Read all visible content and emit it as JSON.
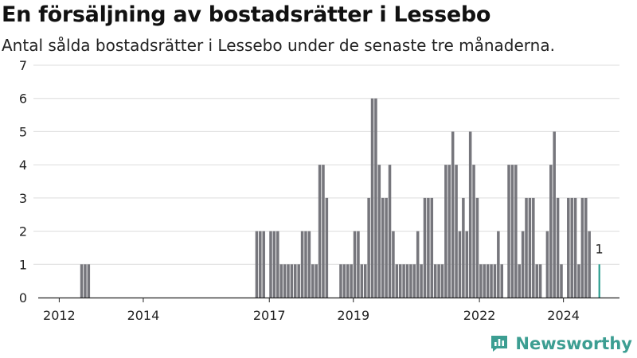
{
  "title": "En försäljning av bostadsrätter i Lessebo",
  "subtitle": "Antal sålda bostadsrätter i Lessebo under de senaste tre månaderna.",
  "brand": "Newsworthy",
  "colors": {
    "bar": "#76767c",
    "highlight": "#2a9d8f",
    "brand": "#3c9e92",
    "grid": "#dcdcdc"
  },
  "chart_data": {
    "type": "bar",
    "title": "En försäljning av bostadsrätter i Lessebo",
    "subtitle": "Antal sålda bostadsrätter i Lessebo under de senaste tre månaderna.",
    "xlabel": "",
    "ylabel": "",
    "ylim": [
      0,
      7
    ],
    "yticks": [
      "0",
      "1",
      "2",
      "3",
      "4",
      "5",
      "6",
      "7"
    ],
    "xticks": [
      {
        "label": "2012",
        "date": "2012-01"
      },
      {
        "label": "2014",
        "date": "2014-01"
      },
      {
        "label": "2017",
        "date": "2017-01"
      },
      {
        "label": "2019",
        "date": "2019-01"
      },
      {
        "label": "2022",
        "date": "2022-01"
      },
      {
        "label": "2024",
        "date": "2024-01"
      }
    ],
    "grid": true,
    "x_start": "2011-07",
    "x_end": "2025-05",
    "series": [
      {
        "values": [
          [
            "2012-07",
            1
          ],
          [
            "2012-08",
            1
          ],
          [
            "2012-09",
            1
          ],
          [
            "2016-09",
            2
          ],
          [
            "2016-10",
            2
          ],
          [
            "2016-11",
            2
          ],
          [
            "2017-01",
            2
          ],
          [
            "2017-02",
            2
          ],
          [
            "2017-03",
            2
          ],
          [
            "2017-04",
            1
          ],
          [
            "2017-05",
            1
          ],
          [
            "2017-06",
            1
          ],
          [
            "2017-07",
            1
          ],
          [
            "2017-08",
            1
          ],
          [
            "2017-09",
            1
          ],
          [
            "2017-10",
            2
          ],
          [
            "2017-11",
            2
          ],
          [
            "2017-12",
            2
          ],
          [
            "2018-01",
            1
          ],
          [
            "2018-02",
            1
          ],
          [
            "2018-03",
            4
          ],
          [
            "2018-04",
            4
          ],
          [
            "2018-05",
            3
          ],
          [
            "2018-09",
            1
          ],
          [
            "2018-10",
            1
          ],
          [
            "2018-11",
            1
          ],
          [
            "2018-12",
            1
          ],
          [
            "2019-01",
            2
          ],
          [
            "2019-02",
            2
          ],
          [
            "2019-03",
            1
          ],
          [
            "2019-04",
            1
          ],
          [
            "2019-05",
            3
          ],
          [
            "2019-06",
            6
          ],
          [
            "2019-07",
            6
          ],
          [
            "2019-08",
            4
          ],
          [
            "2019-09",
            3
          ],
          [
            "2019-10",
            3
          ],
          [
            "2019-11",
            4
          ],
          [
            "2019-12",
            2
          ],
          [
            "2020-01",
            1
          ],
          [
            "2020-02",
            1
          ],
          [
            "2020-03",
            1
          ],
          [
            "2020-04",
            1
          ],
          [
            "2020-05",
            1
          ],
          [
            "2020-06",
            1
          ],
          [
            "2020-07",
            2
          ],
          [
            "2020-08",
            1
          ],
          [
            "2020-09",
            3
          ],
          [
            "2020-10",
            3
          ],
          [
            "2020-11",
            3
          ],
          [
            "2020-12",
            1
          ],
          [
            "2021-01",
            1
          ],
          [
            "2021-02",
            1
          ],
          [
            "2021-03",
            4
          ],
          [
            "2021-04",
            4
          ],
          [
            "2021-05",
            5
          ],
          [
            "2021-06",
            4
          ],
          [
            "2021-07",
            2
          ],
          [
            "2021-08",
            3
          ],
          [
            "2021-09",
            2
          ],
          [
            "2021-10",
            5
          ],
          [
            "2021-11",
            4
          ],
          [
            "2021-12",
            3
          ],
          [
            "2022-01",
            1
          ],
          [
            "2022-02",
            1
          ],
          [
            "2022-03",
            1
          ],
          [
            "2022-04",
            1
          ],
          [
            "2022-05",
            1
          ],
          [
            "2022-06",
            2
          ],
          [
            "2022-07",
            1
          ],
          [
            "2022-09",
            4
          ],
          [
            "2022-10",
            4
          ],
          [
            "2022-11",
            4
          ],
          [
            "2022-12",
            1
          ],
          [
            "2023-01",
            2
          ],
          [
            "2023-02",
            3
          ],
          [
            "2023-03",
            3
          ],
          [
            "2023-04",
            3
          ],
          [
            "2023-05",
            1
          ],
          [
            "2023-06",
            1
          ],
          [
            "2023-08",
            2
          ],
          [
            "2023-09",
            4
          ],
          [
            "2023-10",
            5
          ],
          [
            "2023-11",
            3
          ],
          [
            "2023-12",
            1
          ],
          [
            "2024-02",
            3
          ],
          [
            "2024-03",
            3
          ],
          [
            "2024-04",
            3
          ],
          [
            "2024-05",
            1
          ],
          [
            "2024-06",
            3
          ],
          [
            "2024-07",
            3
          ],
          [
            "2024-08",
            2
          ]
        ]
      }
    ],
    "highlight": {
      "date": "2024-11",
      "value": 1,
      "label": "1"
    }
  }
}
